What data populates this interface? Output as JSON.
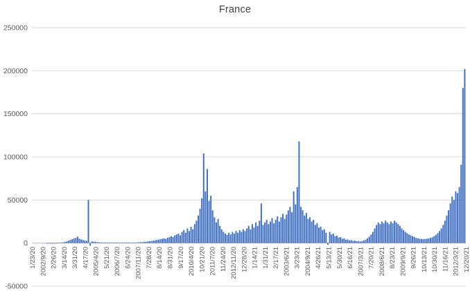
{
  "chart_data": {
    "type": "bar",
    "title": "France",
    "legend": false,
    "grid": true,
    "ylim": [
      -50000,
      250000
    ],
    "y_ticks": [
      250000,
      200000,
      150000,
      100000,
      50000,
      0,
      -50000
    ],
    "x_tick_labels": [
      "1/23/20",
      "2002/9/20",
      "2/26/20",
      "3/14/20",
      "3/31/20",
      "4/17/20",
      "2005/4/20",
      "5/21/20",
      "2006/7/20",
      "6/24/20",
      "2007/11/20",
      "7/28/20",
      "8/14/20",
      "8/31/20",
      "9/17/20",
      "2010/4/20",
      "10/21/20",
      "2011/7/20",
      "11/24/20",
      "2012/11/20",
      "12/28/20",
      "1/14/21",
      "1/31/21",
      "2/17/21",
      "2003/6/21",
      "3/23/21",
      "2004/9/21",
      "4/26/21",
      "5/13/21",
      "5/30/21",
      "6/16/21",
      "2007/3/21",
      "7/20/21",
      "2008/6/21",
      "8/23/21",
      "2009/9/21",
      "9/26/21",
      "10/13/21",
      "10/30/21",
      "11/16/21",
      "2012/3/21",
      "12/20/21"
    ],
    "approx_sample_interval_days": 3,
    "values": [
      0,
      0,
      0,
      0,
      0,
      0,
      0,
      0,
      5,
      10,
      20,
      40,
      80,
      150,
      250,
      400,
      600,
      900,
      1400,
      2000,
      2800,
      3600,
      4500,
      5200,
      6000,
      7500,
      5000,
      4200,
      3600,
      3000,
      2600,
      50000,
      -3000,
      2000,
      1600,
      1300,
      1100,
      900,
      800,
      700,
      600,
      550,
      500,
      450,
      500,
      550,
      600,
      500,
      450,
      500,
      550,
      600,
      650,
      700,
      600,
      550,
      600,
      700,
      800,
      900,
      1000,
      1100,
      1300,
      1500,
      1800,
      2100,
      2400,
      2800,
      3200,
      3600,
      4000,
      4500,
      5000,
      5500,
      5000,
      6000,
      7000,
      8000,
      7000,
      9000,
      10000,
      11000,
      9000,
      13000,
      15000,
      12000,
      17000,
      14000,
      19000,
      16000,
      22000,
      26000,
      32000,
      40000,
      52000,
      104000,
      60000,
      86000,
      49000,
      55000,
      38000,
      30000,
      24000,
      28000,
      20000,
      16000,
      13000,
      11000,
      9500,
      12000,
      10000,
      13000,
      11000,
      14000,
      12000,
      15000,
      13000,
      16000,
      14000,
      17000,
      20000,
      16000,
      22000,
      18000,
      24000,
      20000,
      26000,
      46000,
      21000,
      24000,
      27000,
      22000,
      25000,
      29000,
      23000,
      27000,
      31000,
      25000,
      30000,
      34000,
      28000,
      33000,
      38000,
      42000,
      36000,
      60000,
      45000,
      65000,
      118000,
      42000,
      38000,
      32000,
      35000,
      28000,
      30000,
      25000,
      27000,
      21000,
      23000,
      18000,
      19000,
      15000,
      16000,
      12000,
      -2000,
      13000,
      10000,
      11000,
      8000,
      8500,
      6500,
      7000,
      5000,
      5500,
      4000,
      4200,
      3200,
      3400,
      2600,
      2800,
      2200,
      2400,
      2000,
      2300,
      3000,
      4000,
      5500,
      7500,
      10000,
      13000,
      17000,
      21000,
      24000,
      22000,
      25000,
      23000,
      26000,
      24000,
      22000,
      25000,
      23000,
      26000,
      24000,
      22000,
      20000,
      17000,
      15000,
      13000,
      11500,
      10000,
      9000,
      8000,
      7000,
      6000,
      5500,
      5000,
      4800,
      4500,
      4700,
      5000,
      5500,
      6000,
      6800,
      8000,
      9500,
      11500,
      14000,
      17000,
      21000,
      26000,
      32000,
      38000,
      46000,
      54000,
      50000,
      60000,
      58000,
      65000,
      91000,
      180000,
      202000
    ],
    "colors": {
      "bar": "#4472C4",
      "gridline": "#D9D9D9",
      "axis_line": "#BFBFBF",
      "axis_text": "#595959",
      "title_text": "#444444"
    }
  }
}
